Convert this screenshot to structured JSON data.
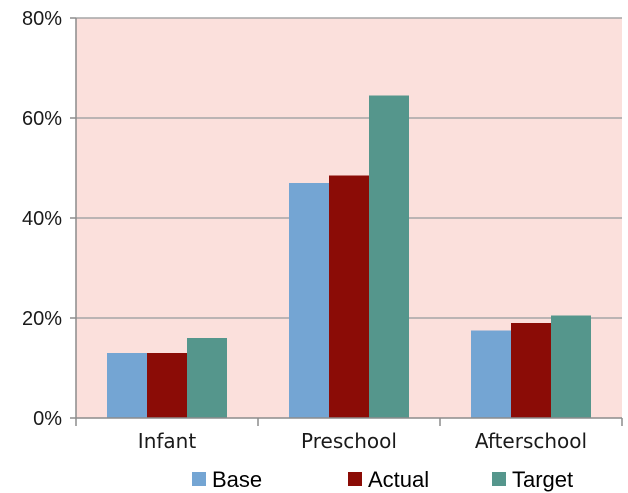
{
  "chart_data": {
    "type": "bar",
    "categories": [
      "Infant",
      "Preschool",
      "Afterschool"
    ],
    "series": [
      {
        "name": "Base",
        "values": [
          13,
          47,
          17.5
        ],
        "color": "#74a5d3"
      },
      {
        "name": "Actual",
        "values": [
          13,
          48.5,
          19
        ],
        "color": "#8b0c06"
      },
      {
        "name": "Target",
        "values": [
          16,
          64.5,
          20.5
        ],
        "color": "#55968c"
      }
    ],
    "y_ticks": [
      "0%",
      "20%",
      "40%",
      "60%",
      "80%"
    ],
    "y_tick_values": [
      0,
      20,
      40,
      60,
      80
    ],
    "ylim": [
      0,
      80
    ],
    "grid": true,
    "legend_position": "bottom",
    "plot_background": "#fbe0dc",
    "gridline_color": "#a6a6a6"
  }
}
